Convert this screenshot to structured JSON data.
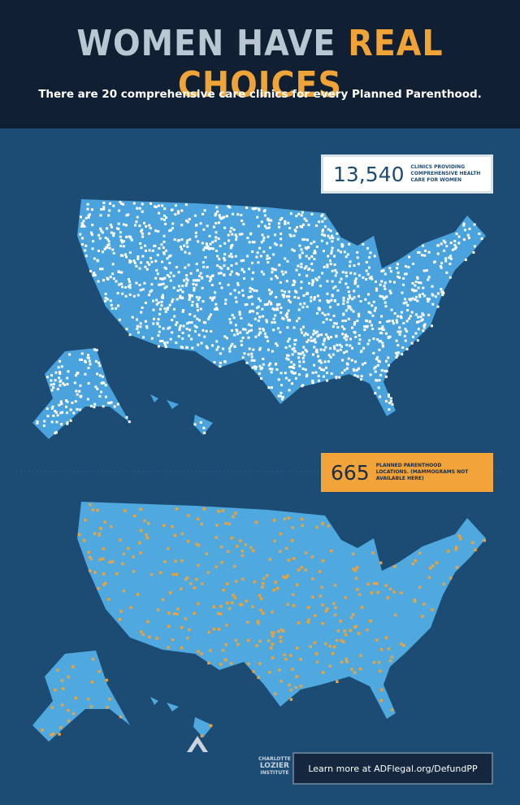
{
  "header": {
    "title_part1": "WOMEN HAVE",
    "title_part2": "REAL CHOICES",
    "subtitle": "There are 20 comprehensive care clinics for every Planned Parenthood."
  },
  "callouts": [
    {
      "number": "13,540",
      "lines": [
        "CLINICS PROVIDING",
        "COMPREHENSIVE HEALTH",
        "CARE FOR WOMEN"
      ]
    },
    {
      "number": "665",
      "lines": [
        "PLANNED PARENTHOOD",
        "LOCATIONS. (MAMMOGRAMS NOT",
        "AVAILABLE HERE)"
      ]
    }
  ],
  "footer": {
    "logo_lines": [
      "CHARLOTTE",
      "LOZIER",
      "INSTITUTE"
    ],
    "link": "Learn more at ADFlegal.org/DefundPP"
  }
}
